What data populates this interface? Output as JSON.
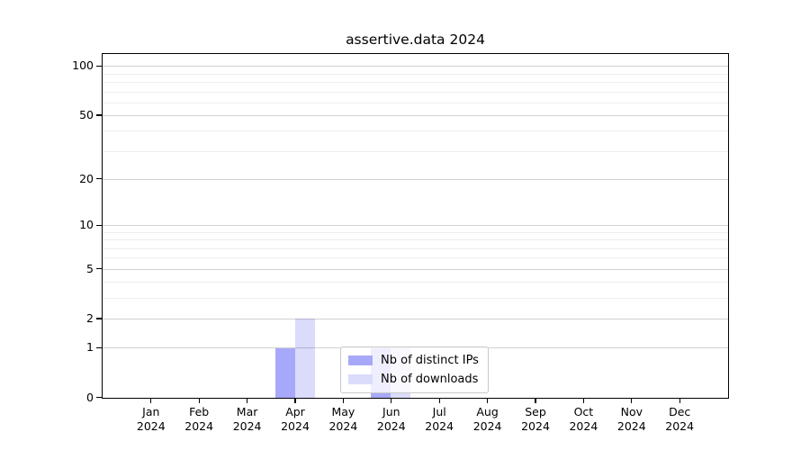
{
  "chart_data": {
    "type": "bar",
    "title": "assertive.data 2024",
    "categories": [
      "Jan",
      "Feb",
      "Mar",
      "Apr",
      "May",
      "Jun",
      "Jul",
      "Aug",
      "Sep",
      "Oct",
      "Nov",
      "Dec"
    ],
    "x_tick_second_line": "2024",
    "series": [
      {
        "name": "Nb of distinct IPs",
        "color": "#a8a8fa",
        "values": [
          0,
          0,
          0,
          1,
          0,
          1,
          0,
          0,
          0,
          0,
          0,
          0
        ]
      },
      {
        "name": "Nb of downloads",
        "color": "#dbdbfb",
        "values": [
          0,
          0,
          0,
          2,
          0,
          1,
          0,
          0,
          0,
          0,
          0,
          0
        ]
      }
    ],
    "yscale": "log1p",
    "ylim": [
      0,
      118
    ],
    "y_ticks": [
      0,
      1,
      2,
      5,
      10,
      20,
      50,
      100
    ],
    "y_minor_gridlines": [
      3,
      4,
      6,
      7,
      8,
      9,
      30,
      40,
      60,
      70,
      80,
      90
    ],
    "grid": true,
    "legend_position": "lower center",
    "colors": {
      "axis": "#000000",
      "major_grid": "#d2d2d2",
      "minor_grid": "#ececec",
      "background": "#ffffff"
    }
  }
}
